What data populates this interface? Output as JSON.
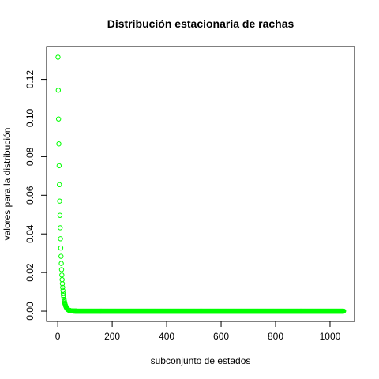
{
  "chart_data": {
    "type": "scatter",
    "title": "Distribución estacionaria de rachas",
    "xlabel": "subconjunto de estados",
    "ylabel": "valores para la distribución",
    "x_ticks": [
      0,
      200,
      400,
      600,
      800,
      1000
    ],
    "y_ticks": [
      0.0,
      0.02,
      0.04,
      0.06,
      0.08,
      0.1,
      0.12
    ],
    "y_tick_labels": [
      "0.00",
      "0.02",
      "0.04",
      "0.06",
      "0.08",
      "0.10",
      "0.12"
    ],
    "xlim": [
      -41,
      1090
    ],
    "ylim": [
      -0.0053,
      0.137
    ],
    "n_points": 1050,
    "series": [
      {
        "marker": "open-circle",
        "color": "#00ff00",
        "first_value": 0.1315,
        "ratio": 0.87,
        "values_head": [
          0.1315,
          0.1144,
          0.0995,
          0.0866,
          0.0753,
          0.0655,
          0.057,
          0.0496,
          0.0432,
          0.0375,
          0.0327,
          0.0284,
          0.0247,
          0.0215,
          0.0187,
          0.0163,
          0.0142,
          0.0123,
          0.0107,
          0.0093
        ],
        "tail_value": 0.0
      }
    ],
    "grid": false,
    "legend": false
  }
}
